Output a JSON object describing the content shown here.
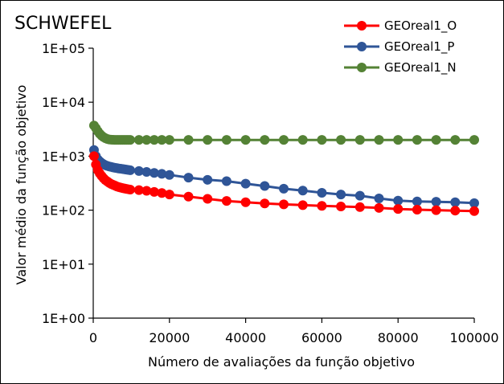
{
  "chart_data": {
    "type": "line",
    "title": "SCHWEFEL",
    "xlabel": "Número de avaliações da função objetivo",
    "ylabel": "Valor médio da função objetivo",
    "xlim": [
      0,
      100000
    ],
    "ylim": [
      1,
      100000
    ],
    "yscale": "log",
    "x_ticks": [
      0,
      20000,
      40000,
      60000,
      80000,
      100000
    ],
    "x_tick_labels": [
      "0",
      "20000",
      "40000",
      "60000",
      "80000",
      "100000"
    ],
    "y_ticks": [
      1,
      10,
      100,
      1000,
      10000,
      100000
    ],
    "y_tick_labels": [
      "1E+00",
      "1E+01",
      "1E+02",
      "1E+03",
      "1E+04",
      "1E+05"
    ],
    "grid": false,
    "legend_position": "top-right",
    "series": [
      {
        "name": "GEOreal1_O",
        "color": "#ff0000",
        "points": [
          [
            200,
            1000
          ],
          [
            700,
            700
          ],
          [
            1200,
            550
          ],
          [
            1700,
            480
          ],
          [
            2200,
            430
          ],
          [
            2700,
            390
          ],
          [
            3200,
            360
          ],
          [
            3700,
            340
          ],
          [
            4200,
            320
          ],
          [
            4700,
            305
          ],
          [
            5200,
            295
          ],
          [
            5700,
            285
          ],
          [
            6200,
            275
          ],
          [
            6700,
            268
          ],
          [
            7200,
            262
          ],
          [
            7700,
            256
          ],
          [
            8200,
            252
          ],
          [
            8700,
            248
          ],
          [
            9200,
            244
          ],
          [
            9700,
            240
          ],
          [
            12000,
            235
          ],
          [
            14000,
            228
          ],
          [
            16000,
            218
          ],
          [
            18000,
            208
          ],
          [
            20000,
            195
          ],
          [
            25000,
            178
          ],
          [
            30000,
            162
          ],
          [
            35000,
            148
          ],
          [
            40000,
            140
          ],
          [
            45000,
            133
          ],
          [
            50000,
            128
          ],
          [
            55000,
            124
          ],
          [
            60000,
            120
          ],
          [
            65000,
            117
          ],
          [
            70000,
            114
          ],
          [
            75000,
            110
          ],
          [
            80000,
            105
          ],
          [
            85000,
            102
          ],
          [
            90000,
            100
          ],
          [
            95000,
            98
          ],
          [
            100000,
            96
          ]
        ]
      },
      {
        "name": "GEOreal1_P",
        "color": "#2f5597",
        "points": [
          [
            200,
            1300
          ],
          [
            700,
            1000
          ],
          [
            1200,
            870
          ],
          [
            1700,
            800
          ],
          [
            2200,
            750
          ],
          [
            2700,
            710
          ],
          [
            3200,
            680
          ],
          [
            3700,
            660
          ],
          [
            4200,
            645
          ],
          [
            4700,
            632
          ],
          [
            5200,
            620
          ],
          [
            5700,
            610
          ],
          [
            6200,
            600
          ],
          [
            6700,
            592
          ],
          [
            7200,
            585
          ],
          [
            7700,
            578
          ],
          [
            8200,
            570
          ],
          [
            8700,
            563
          ],
          [
            9200,
            556
          ],
          [
            9700,
            550
          ],
          [
            12000,
            530
          ],
          [
            14000,
            510
          ],
          [
            16000,
            490
          ],
          [
            18000,
            470
          ],
          [
            20000,
            450
          ],
          [
            25000,
            400
          ],
          [
            30000,
            365
          ],
          [
            35000,
            345
          ],
          [
            40000,
            310
          ],
          [
            45000,
            280
          ],
          [
            50000,
            250
          ],
          [
            55000,
            230
          ],
          [
            60000,
            210
          ],
          [
            65000,
            195
          ],
          [
            70000,
            185
          ],
          [
            75000,
            165
          ],
          [
            80000,
            150
          ],
          [
            85000,
            145
          ],
          [
            90000,
            143
          ],
          [
            95000,
            140
          ],
          [
            100000,
            135
          ]
        ]
      },
      {
        "name": "GEOreal1_N",
        "color": "#548235",
        "points": [
          [
            200,
            3700
          ],
          [
            700,
            3300
          ],
          [
            1200,
            2900
          ],
          [
            1700,
            2600
          ],
          [
            2200,
            2400
          ],
          [
            2700,
            2250
          ],
          [
            3200,
            2150
          ],
          [
            3700,
            2080
          ],
          [
            4200,
            2040
          ],
          [
            4700,
            2020
          ],
          [
            5200,
            2010
          ],
          [
            5700,
            2005
          ],
          [
            6200,
            2000
          ],
          [
            6700,
            2000
          ],
          [
            7200,
            2000
          ],
          [
            7700,
            2000
          ],
          [
            8200,
            2000
          ],
          [
            8700,
            2000
          ],
          [
            9200,
            2000
          ],
          [
            9700,
            2000
          ],
          [
            12000,
            2000
          ],
          [
            14000,
            2000
          ],
          [
            16000,
            2000
          ],
          [
            18000,
            2000
          ],
          [
            20000,
            2000
          ],
          [
            25000,
            2000
          ],
          [
            30000,
            2000
          ],
          [
            35000,
            2000
          ],
          [
            40000,
            2000
          ],
          [
            45000,
            2000
          ],
          [
            50000,
            2000
          ],
          [
            55000,
            2000
          ],
          [
            60000,
            2000
          ],
          [
            65000,
            2000
          ],
          [
            70000,
            2000
          ],
          [
            75000,
            2000
          ],
          [
            80000,
            2000
          ],
          [
            85000,
            2000
          ],
          [
            90000,
            2000
          ],
          [
            95000,
            2000
          ],
          [
            100000,
            2000
          ]
        ]
      }
    ]
  }
}
